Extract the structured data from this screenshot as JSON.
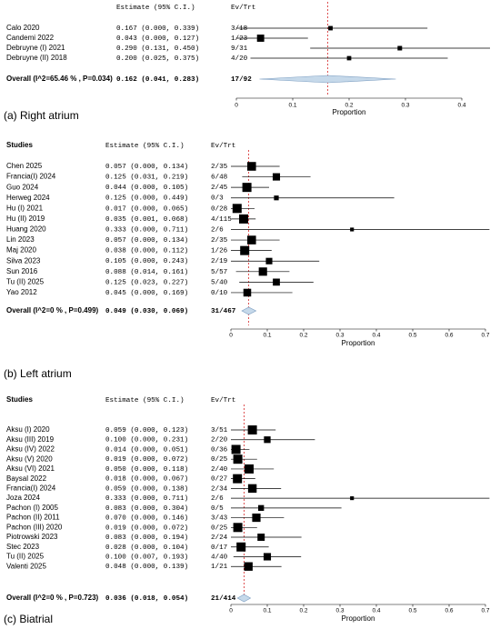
{
  "chart_data": [
    {
      "type": "forest",
      "title": "(a) Right atrium",
      "estimate_header": "Estimate (95% C.I.)",
      "events_header": "Ev/Trt",
      "categories": [
        "Calo 2020",
        "Candemi 2022",
        "Debruyne (I) 2021",
        "Debruyne (II) 2018"
      ],
      "values": [
        0.167,
        0.043,
        0.29,
        0.2
      ],
      "lower": [
        0.0,
        0.0,
        0.131,
        0.025
      ],
      "upper": [
        0.339,
        0.127,
        0.45,
        0.375
      ],
      "value_labels": [
        "0.167 (0.000, 0.339)",
        "0.043 (0.000, 0.127)",
        "0.290 (0.131, 0.450)",
        "0.200 (0.025, 0.375)"
      ],
      "events": [
        "3/18",
        "1/23",
        "9/31",
        "4/20"
      ],
      "overall": {
        "label": "Overall (I^2=65.46 % , P=0.034)",
        "value": 0.162,
        "lower": 0.041,
        "upper": 0.283,
        "value_label": "0.162 (0.041, 0.283)",
        "events": "17/92"
      },
      "xlabel": "Proportion",
      "xlim": [
        0,
        0.4
      ],
      "xticks": [
        0,
        0.1,
        0.2,
        0.3,
        0.4
      ],
      "color": "#000000",
      "diamond_color": "#c6d9ea"
    },
    {
      "type": "forest",
      "title": "(b) Left atrium",
      "study_header": "Studies",
      "estimate_header": "Estimate (95% C.I.)",
      "events_header": "Ev/Trt",
      "categories": [
        "Chen 2025",
        "Francia(I) 2024",
        "Guo 2024",
        "Herweg 2024",
        "Hu (I) 2021",
        "Hu (II) 2019",
        "Huang 2020",
        "Lin 2023",
        "Maj 2020",
        "Silva 2023",
        "Sun 2016",
        "Tu (II) 2025",
        "Yao 2012"
      ],
      "values": [
        0.057,
        0.125,
        0.044,
        0.125,
        0.017,
        0.035,
        0.333,
        0.057,
        0.038,
        0.105,
        0.088,
        0.125,
        0.045
      ],
      "lower": [
        0.0,
        0.031,
        0.0,
        0.0,
        0.0,
        0.001,
        0.0,
        0.0,
        0.0,
        0.0,
        0.014,
        0.023,
        0.0
      ],
      "upper": [
        0.134,
        0.219,
        0.105,
        0.449,
        0.065,
        0.068,
        0.711,
        0.134,
        0.112,
        0.243,
        0.161,
        0.227,
        0.169
      ],
      "value_labels": [
        "0.057 (0.000, 0.134)",
        "0.125 (0.031, 0.219)",
        "0.044 (0.000, 0.105)",
        "0.125 (0.000, 0.449)",
        "0.017 (0.000, 0.065)",
        "0.035 (0.001, 0.068)",
        "0.333 (0.000, 0.711)",
        "0.057 (0.000, 0.134)",
        "0.038 (0.000, 0.112)",
        "0.105 (0.000, 0.243)",
        "0.088 (0.014, 0.161)",
        "0.125 (0.023, 0.227)",
        "0.045 (0.000, 0.169)"
      ],
      "events": [
        "2/35",
        "6/48",
        "2/45",
        "0/3",
        "0/28",
        "4/115",
        "2/6",
        "2/35",
        "1/26",
        "2/19",
        "5/57",
        "5/40",
        "0/10"
      ],
      "overall": {
        "label": "Overall (I^2=0 % , P=0.499)",
        "value": 0.049,
        "lower": 0.03,
        "upper": 0.069,
        "value_label": "0.049 (0.030, 0.069)",
        "events": "31/467"
      },
      "xlabel": "Proportion",
      "xlim": [
        0,
        0.7
      ],
      "xticks": [
        0,
        0.1,
        0.2,
        0.3,
        0.4,
        0.5,
        0.6,
        0.7
      ],
      "color": "#000000",
      "diamond_color": "#c6d9ea"
    },
    {
      "type": "forest",
      "title": "(c) Biatrial",
      "study_header": "Studies",
      "estimate_header": "Estimate (95% C.I.)",
      "events_header": "Ev/Trt",
      "categories": [
        "Aksu (I) 2020",
        "Aksu (III) 2019",
        "Aksu (IV) 2022",
        "Aksu (V) 2020",
        "Aksu (VI) 2021",
        "Baysal 2022",
        "Francia(I) 2024",
        "Joza 2024",
        "Pachon (I) 2005",
        "Pachon (II) 2011",
        "Pachon (III) 2020",
        "Piotrowski 2023",
        "Stec 2023",
        "Tu (II) 2025",
        "Valenti 2025"
      ],
      "values": [
        0.059,
        0.1,
        0.014,
        0.019,
        0.05,
        0.018,
        0.059,
        0.333,
        0.083,
        0.07,
        0.019,
        0.083,
        0.028,
        0.1,
        0.048
      ],
      "lower": [
        0.0,
        0.0,
        0.0,
        0.0,
        0.0,
        0.0,
        0.0,
        0.0,
        0.0,
        0.0,
        0.0,
        0.0,
        0.0,
        0.007,
        0.0
      ],
      "upper": [
        0.123,
        0.231,
        0.051,
        0.072,
        0.118,
        0.067,
        0.138,
        0.711,
        0.304,
        0.146,
        0.072,
        0.194,
        0.104,
        0.193,
        0.139
      ],
      "value_labels": [
        "0.059 (0.000, 0.123)",
        "0.100 (0.000, 0.231)",
        "0.014 (0.000, 0.051)",
        "0.019 (0.000, 0.072)",
        "0.050 (0.000, 0.118)",
        "0.018 (0.000, 0.067)",
        "0.059 (0.000, 0.138)",
        "0.333 (0.000, 0.711)",
        "0.083 (0.000, 0.304)",
        "0.070 (0.000, 0.146)",
        "0.019 (0.000, 0.072)",
        "0.083 (0.000, 0.194)",
        "0.028 (0.000, 0.104)",
        "0.100 (0.007, 0.193)",
        "0.048 (0.000, 0.139)"
      ],
      "events": [
        "3/51",
        "2/20",
        "0/36",
        "0/25",
        "2/40",
        "0/27",
        "2/34",
        "2/6",
        "0/5",
        "3/43",
        "0/25",
        "2/24",
        "0/17",
        "4/40",
        "1/21"
      ],
      "overall": {
        "label": "Overall (I^2=0 % , P=0.723)",
        "value": 0.036,
        "lower": 0.018,
        "upper": 0.054,
        "value_label": "0.036 (0.018, 0.054)",
        "events": "21/414"
      },
      "xlabel": "Proportion",
      "xlim": [
        0,
        0.7
      ],
      "xticks": [
        0,
        0.1,
        0.2,
        0.3,
        0.4,
        0.5,
        0.6,
        0.7
      ],
      "color": "#000000",
      "diamond_color": "#c6d9ea"
    }
  ]
}
